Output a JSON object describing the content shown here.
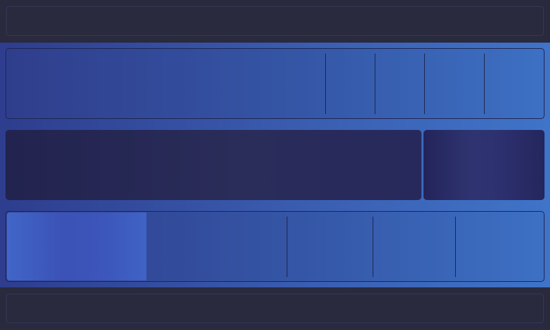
{
  "colors": {
    "background_start": "#2e3d8e",
    "background_end": "#3f74c8",
    "bar": "#292a3e",
    "dark_panel": "#22234f",
    "selected_cell": "#3b52b6",
    "divider": "#1c2450"
  },
  "top_bar": {},
  "row1": {
    "cells": 5
  },
  "row2": {
    "segments": 2
  },
  "row3": {
    "cells": 5,
    "selected_index": 0
  },
  "bottom_bar": {}
}
